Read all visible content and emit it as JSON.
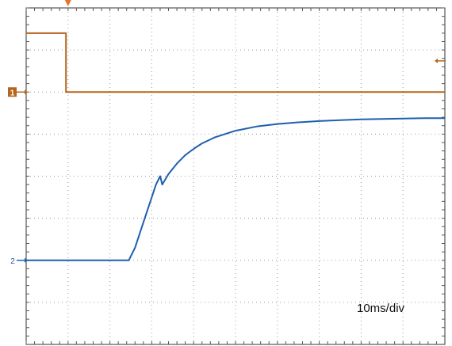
{
  "chart_data": {
    "type": "line",
    "title": "",
    "xlabel": "",
    "ylabel": "",
    "timebase": "10ms/div",
    "grid": true,
    "x_divisions": 10,
    "y_divisions": 8,
    "xlim": [
      0,
      10
    ],
    "ylim": [
      0,
      8
    ],
    "trigger_x": 1.0,
    "series": [
      {
        "marker": "1",
        "color": "#b5651d",
        "ref_level": 6.0,
        "x": [
          0,
          0.95,
          0.95,
          10
        ],
        "y": [
          7.4,
          7.4,
          6.0,
          6.0
        ]
      },
      {
        "marker": "2",
        "color": "#1f5fb0",
        "ref_level": 2.0,
        "x": [
          0,
          2.45,
          2.6,
          2.8,
          3.0,
          3.1,
          3.2,
          3.25,
          3.4,
          3.6,
          3.8,
          4.0,
          4.2,
          4.5,
          5.0,
          5.5,
          6.0,
          6.5,
          7.0,
          7.5,
          8.0,
          8.5,
          9.0,
          9.5,
          10
        ],
        "y": [
          2.0,
          2.0,
          2.3,
          2.9,
          3.5,
          3.8,
          4.0,
          3.8,
          4.05,
          4.3,
          4.5,
          4.65,
          4.78,
          4.92,
          5.08,
          5.18,
          5.24,
          5.28,
          5.31,
          5.33,
          5.35,
          5.36,
          5.37,
          5.38,
          5.38
        ]
      }
    ]
  }
}
